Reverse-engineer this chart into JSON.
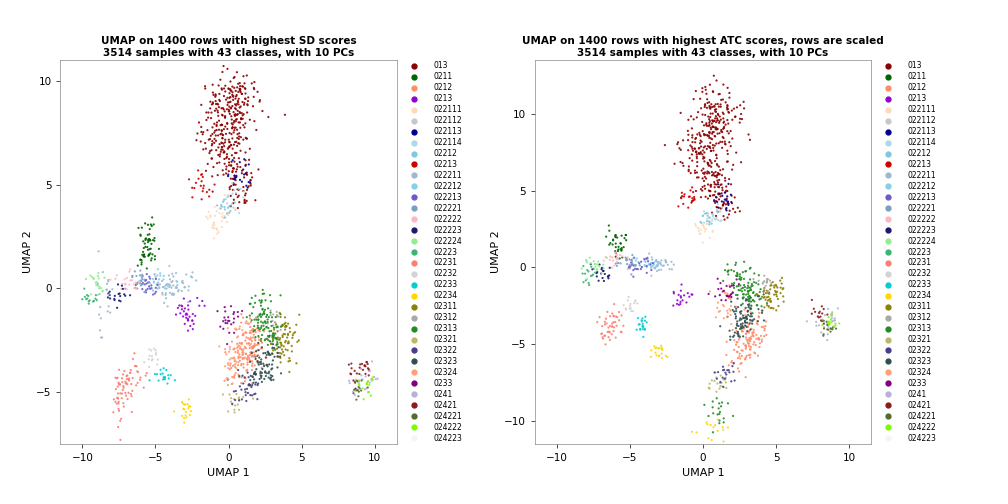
{
  "title1": "UMAP on 1400 rows with highest SD scores\n3514 samples with 43 classes, with 10 PCs",
  "title2": "UMAP on 1400 rows with highest ATC scores, rows are scaled\n3514 samples with 43 classes, with 10 PCs",
  "xlabel": "UMAP 1",
  "ylabel": "UMAP 2",
  "xlim1": [
    -11.5,
    11.5
  ],
  "ylim1": [
    -7.5,
    11.0
  ],
  "xticks1": [
    -10,
    -5,
    0,
    5,
    10
  ],
  "yticks1": [
    -5,
    0,
    5,
    10
  ],
  "xlim2": [
    -11.5,
    11.5
  ],
  "ylim2": [
    -11.5,
    13.5
  ],
  "xticks2": [
    -10,
    -5,
    0,
    5,
    10
  ],
  "yticks2": [
    -10,
    -5,
    0,
    5,
    10
  ],
  "classes": [
    "013",
    "0211",
    "0212",
    "0213",
    "022111",
    "022112",
    "022113",
    "022114",
    "02212",
    "02213",
    "022211",
    "022212",
    "022213",
    "022221",
    "022222",
    "022223",
    "022224",
    "02223",
    "02231",
    "02232",
    "02233",
    "02234",
    "02311",
    "02312",
    "02313",
    "02321",
    "02322",
    "02323",
    "02324",
    "0233",
    "0241",
    "02421",
    "024221",
    "024222",
    "024223"
  ],
  "legend_colors": [
    "#8B0000",
    "#006400",
    "#FF8C69",
    "#9400D3",
    "#FFDAB9",
    "#C8C8C8",
    "#00008B",
    "#ADD8E6",
    "#80C8E0",
    "#CC0000",
    "#9EB8CF",
    "#87CEEB",
    "#6A5ACD",
    "#7B9FC0",
    "#FFB6C1",
    "#191970",
    "#90EE90",
    "#3CB371",
    "#FA8072",
    "#D3D3D3",
    "#00CED1",
    "#FFD700",
    "#8B8000",
    "#A9A9A9",
    "#228B22",
    "#BDB76B",
    "#483D8B",
    "#2F4F4F",
    "#FFA07A",
    "#800080",
    "#B8B0D8",
    "#8B1A1A",
    "#556B2F",
    "#7CFC00",
    "#F5F5F5"
  ]
}
